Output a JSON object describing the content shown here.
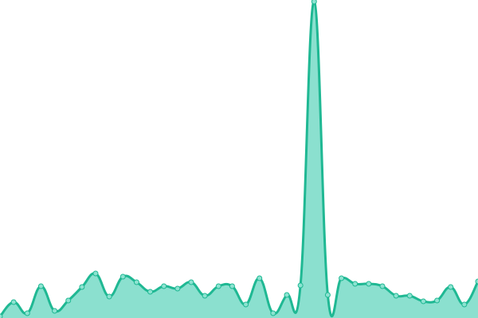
{
  "chart_data": {
    "type": "area",
    "title": "",
    "xlabel": "",
    "ylabel": "",
    "x": [
      0,
      1,
      2,
      3,
      4,
      5,
      6,
      7,
      8,
      9,
      10,
      11,
      12,
      13,
      14,
      15,
      16,
      17,
      18,
      19,
      20,
      21,
      22,
      23,
      24,
      25,
      26,
      27,
      28,
      29,
      30,
      31,
      32,
      33,
      34,
      35
    ],
    "values": [
      2,
      20,
      6,
      40,
      9,
      22,
      39,
      56,
      27,
      52,
      45,
      33,
      40,
      37,
      45,
      28,
      40,
      40,
      17,
      50,
      6,
      29,
      41,
      398,
      29,
      50,
      43,
      43,
      40,
      28,
      28,
      21,
      22,
      39,
      17,
      46
    ],
    "ylim": [
      0,
      400
    ],
    "grid": false,
    "axes_visible": false,
    "smooth": true,
    "markers": true,
    "colors": {
      "line": "#1fb893",
      "fill": "#8be0cf",
      "marker_fill": "#8de3d1"
    }
  }
}
